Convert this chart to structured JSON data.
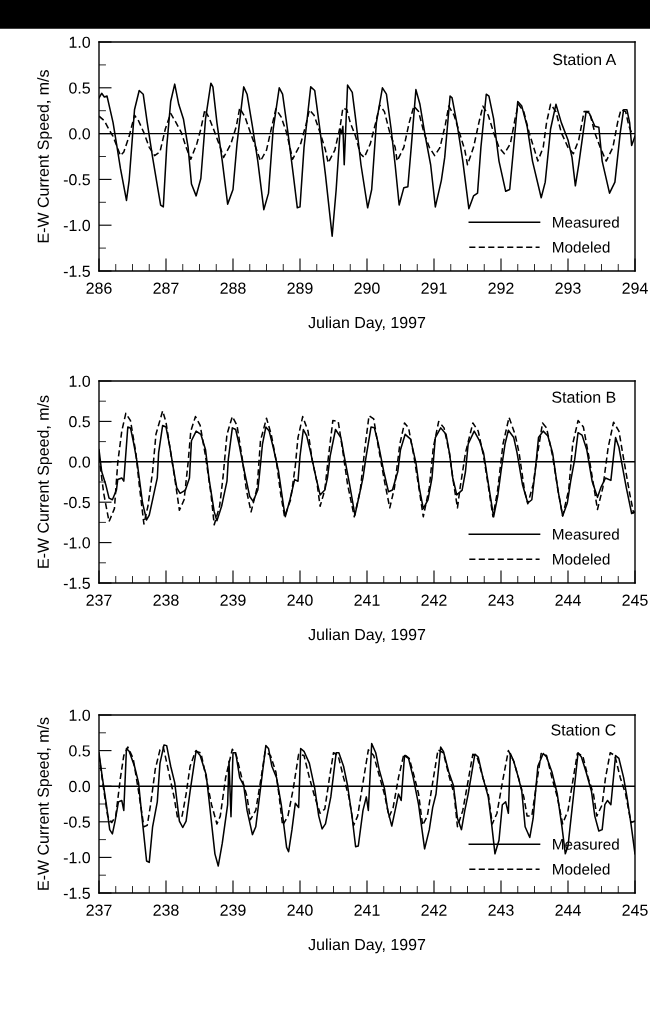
{
  "chart_data": [
    {
      "type": "line",
      "annotations": [
        "Station A"
      ],
      "xlabel": "Julian Day, 1997",
      "ylabel": "E-W Current Speed, m/s",
      "legend": "bottom right",
      "xlim": [
        286,
        294
      ],
      "ylim": [
        -1.5,
        1.0
      ],
      "xticks": [
        286,
        {
          "value": 286.25,
          "label": null
        },
        {
          "value": 286.5,
          "label": null
        },
        {
          "value": 286.75,
          "label": null
        },
        287,
        {
          "value": 287.25,
          "label": null
        },
        {
          "value": 287.5,
          "label": null
        },
        {
          "value": 287.75,
          "label": null
        },
        288,
        {
          "value": 288.25,
          "label": null
        },
        {
          "value": 288.5,
          "label": null
        },
        {
          "value": 288.75,
          "label": null
        },
        289,
        {
          "value": 289.25,
          "label": null
        },
        {
          "value": 289.5,
          "label": null
        },
        {
          "value": 289.75,
          "label": null
        },
        290,
        {
          "value": 290.25,
          "label": null
        },
        {
          "value": 290.5,
          "label": null
        },
        {
          "value": 290.75,
          "label": null
        },
        291,
        {
          "value": 291.25,
          "label": null
        },
        {
          "value": 291.5,
          "label": null
        },
        {
          "value": 291.75,
          "label": null
        },
        292,
        {
          "value": 292.25,
          "label": null
        },
        {
          "value": 292.5,
          "label": null
        },
        {
          "value": 292.75,
          "label": null
        },
        293,
        {
          "value": 293.25,
          "label": null
        },
        {
          "value": 293.5,
          "label": null
        },
        {
          "value": 293.75,
          "label": null
        },
        294
      ],
      "yticks": [
        -1.5,
        {
          "value": -1.25,
          "label": null
        },
        {
          "value": -1.0,
          "label": "-1.0"
        },
        {
          "value": -0.75,
          "label": null
        },
        -0.5,
        {
          "value": -0.25,
          "label": null
        },
        {
          "value": 0.0,
          "label": "0.0"
        },
        {
          "value": 0.25,
          "label": null
        },
        0.5,
        {
          "value": 0.75,
          "label": null
        },
        {
          "value": 1.0,
          "label": "1.0"
        }
      ],
      "ref_lines": [
        {
          "axis": "y",
          "value": 0,
          "color": "#000000"
        }
      ],
      "series": [
        {
          "name": "Measured",
          "color": "#000000",
          "line_style": "solid",
          "x": [
            286.0,
            286.04,
            286.08,
            286.12,
            286.16,
            286.21,
            286.27,
            286.32,
            286.41,
            286.45,
            286.53,
            286.6,
            286.66,
            286.72,
            286.8,
            286.88,
            286.92,
            286.96,
            287.01,
            287.07,
            287.13,
            287.19,
            287.26,
            287.33,
            287.38,
            287.45,
            287.52,
            287.59,
            287.67,
            287.7,
            287.76,
            287.84,
            287.92,
            288.0,
            288.06,
            288.16,
            288.21,
            288.29,
            288.37,
            288.46,
            288.53,
            288.6,
            288.69,
            288.74,
            288.82,
            288.9,
            288.96,
            289.0,
            289.06,
            289.16,
            289.22,
            289.3,
            289.38,
            289.48,
            289.54,
            289.6,
            289.62,
            289.64,
            289.66,
            289.68,
            289.71,
            289.78,
            289.83,
            289.91,
            290.01,
            290.07,
            290.14,
            290.23,
            290.29,
            290.36,
            290.42,
            290.48,
            290.55,
            290.61,
            290.66,
            290.73,
            290.79,
            290.87,
            290.95,
            291.02,
            291.11,
            291.16,
            291.24,
            291.27,
            291.35,
            291.43,
            291.52,
            291.59,
            291.65,
            291.7,
            291.78,
            291.82,
            291.89,
            291.97,
            292.07,
            292.13,
            292.18,
            292.25,
            292.31,
            292.39,
            292.47,
            292.6,
            292.66,
            292.74,
            292.82,
            292.9,
            293.0,
            293.06,
            293.11,
            293.16,
            293.27,
            293.32,
            293.4,
            293.46,
            293.51,
            293.62,
            293.7,
            293.78,
            293.83,
            293.88,
            293.92,
            293.95,
            294.0
          ],
          "values": [
            0.39,
            0.44,
            0.4,
            0.41,
            0.28,
            0.12,
            -0.15,
            -0.38,
            -0.73,
            -0.51,
            0.26,
            0.47,
            0.43,
            0.12,
            -0.26,
            -0.61,
            -0.78,
            -0.8,
            -0.15,
            0.35,
            0.54,
            0.32,
            0.16,
            -0.15,
            -0.55,
            -0.68,
            -0.49,
            0.16,
            0.55,
            0.51,
            0.12,
            -0.3,
            -0.77,
            -0.61,
            -0.11,
            0.51,
            0.43,
            0.08,
            -0.3,
            -0.83,
            -0.65,
            0.05,
            0.5,
            0.43,
            0.01,
            -0.45,
            -0.81,
            -0.8,
            -0.15,
            0.51,
            0.47,
            0.03,
            -0.45,
            -1.12,
            -0.61,
            0.05,
            0.0,
            0.08,
            -0.34,
            0.01,
            0.53,
            0.45,
            0.16,
            -0.34,
            -0.81,
            -0.61,
            0.12,
            0.5,
            0.43,
            0.05,
            -0.34,
            -0.78,
            -0.59,
            -0.58,
            -0.15,
            0.48,
            0.32,
            -0.03,
            -0.34,
            -0.8,
            -0.51,
            -0.26,
            0.41,
            0.39,
            0.08,
            -0.3,
            -0.82,
            -0.68,
            -0.65,
            -0.15,
            0.43,
            0.41,
            0.16,
            -0.3,
            -0.63,
            -0.61,
            -0.22,
            0.35,
            0.3,
            0.08,
            -0.3,
            -0.7,
            -0.53,
            0.05,
            0.32,
            0.12,
            -0.07,
            -0.26,
            -0.57,
            -0.34,
            0.24,
            0.22,
            0.08,
            0.07,
            -0.3,
            -0.65,
            -0.53,
            0.01,
            0.26,
            0.26,
            0.12,
            -0.13,
            -0.03
          ]
        },
        {
          "name": "Modeled",
          "color": "#000000",
          "line_style": "dashed",
          "x": [
            286.0,
            286.08,
            286.16,
            286.21,
            286.32,
            286.37,
            286.45,
            286.53,
            286.59,
            286.67,
            286.75,
            286.83,
            286.91,
            286.99,
            287.07,
            287.15,
            287.23,
            287.3,
            287.37,
            287.46,
            287.52,
            287.58,
            287.65,
            287.73,
            287.81,
            287.86,
            287.97,
            288.05,
            288.1,
            288.18,
            288.26,
            288.34,
            288.41,
            288.5,
            288.58,
            288.64,
            288.72,
            288.8,
            288.89,
            289.01,
            289.09,
            289.14,
            289.21,
            289.3,
            289.38,
            289.42,
            289.52,
            289.6,
            289.64,
            289.7,
            289.75,
            289.83,
            289.9,
            289.96,
            290.05,
            290.13,
            290.19,
            290.26,
            290.34,
            290.42,
            290.45,
            290.55,
            290.63,
            290.7,
            290.77,
            290.85,
            290.93,
            291.01,
            291.09,
            291.17,
            291.22,
            291.3,
            291.38,
            291.46,
            291.5,
            291.59,
            291.67,
            291.73,
            291.81,
            291.89,
            291.97,
            292.05,
            292.14,
            292.21,
            292.26,
            292.34,
            292.42,
            292.5,
            292.55,
            292.63,
            292.68,
            292.74,
            292.82,
            292.9,
            293.0,
            293.08,
            293.16,
            293.24,
            293.32,
            293.4,
            293.48,
            293.57,
            293.67,
            293.74,
            293.79,
            293.86,
            293.91,
            293.96
          ],
          "values": [
            0.19,
            0.14,
            0.03,
            -0.03,
            -0.24,
            -0.2,
            -0.03,
            0.2,
            0.14,
            0.01,
            -0.15,
            -0.24,
            -0.2,
            0.05,
            0.22,
            0.12,
            0.01,
            -0.15,
            -0.28,
            -0.11,
            0.05,
            0.26,
            0.16,
            0.01,
            -0.15,
            -0.26,
            -0.11,
            0.08,
            0.28,
            0.18,
            0.01,
            -0.15,
            -0.3,
            -0.18,
            0.08,
            0.27,
            0.18,
            0.01,
            -0.28,
            -0.11,
            0.1,
            0.26,
            0.2,
            0.01,
            -0.18,
            -0.32,
            -0.18,
            0.08,
            0.28,
            0.26,
            0.12,
            -0.03,
            -0.22,
            -0.26,
            -0.11,
            0.12,
            0.31,
            0.24,
            0.01,
            -0.15,
            -0.3,
            -0.15,
            0.12,
            0.3,
            0.24,
            0.01,
            -0.15,
            -0.24,
            -0.15,
            0.1,
            0.3,
            0.2,
            0.01,
            -0.18,
            -0.34,
            -0.15,
            0.12,
            0.3,
            0.2,
            0.01,
            -0.15,
            -0.22,
            -0.11,
            0.16,
            0.32,
            0.24,
            0.01,
            -0.18,
            -0.3,
            -0.15,
            0.12,
            0.32,
            0.24,
            0.01,
            -0.15,
            -0.22,
            -0.07,
            0.24,
            0.24,
            0.01,
            -0.15,
            -0.3,
            -0.15,
            0.12,
            0.26,
            0.24,
            0.08,
            -0.01
          ]
        }
      ]
    },
    {
      "type": "line",
      "annotations": [
        "Station B"
      ],
      "xlabel": "Julian Day, 1997",
      "ylabel": "E-W Current Speed, m/s",
      "legend": "bottom right",
      "xlim": [
        237,
        245
      ],
      "ylim": [
        -1.5,
        1.0
      ],
      "xticks": [
        237,
        {
          "value": 237.25,
          "label": null
        },
        {
          "value": 237.5,
          "label": null
        },
        {
          "value": 237.75,
          "label": null
        },
        238,
        {
          "value": 238.25,
          "label": null
        },
        {
          "value": 238.5,
          "label": null
        },
        {
          "value": 238.75,
          "label": null
        },
        239,
        {
          "value": 239.25,
          "label": null
        },
        {
          "value": 239.5,
          "label": null
        },
        {
          "value": 239.75,
          "label": null
        },
        240,
        {
          "value": 240.25,
          "label": null
        },
        {
          "value": 240.5,
          "label": null
        },
        {
          "value": 240.75,
          "label": null
        },
        241,
        {
          "value": 241.25,
          "label": null
        },
        {
          "value": 241.5,
          "label": null
        },
        {
          "value": 241.75,
          "label": null
        },
        242,
        {
          "value": 242.25,
          "label": null
        },
        {
          "value": 242.5,
          "label": null
        },
        {
          "value": 242.75,
          "label": null
        },
        243,
        {
          "value": 243.25,
          "label": null
        },
        {
          "value": 243.5,
          "label": null
        },
        {
          "value": 243.75,
          "label": null
        },
        244,
        {
          "value": 244.25,
          "label": null
        },
        {
          "value": 244.5,
          "label": null
        },
        {
          "value": 244.75,
          "label": null
        },
        245
      ],
      "yticks": [
        -1.5,
        {
          "value": -1.25,
          "label": null
        },
        {
          "value": -1.0,
          "label": "-1.0"
        },
        {
          "value": -0.75,
          "label": null
        },
        -0.5,
        {
          "value": -0.25,
          "label": null
        },
        {
          "value": 0.0,
          "label": "0.0"
        },
        {
          "value": 0.25,
          "label": null
        },
        0.5,
        {
          "value": 0.75,
          "label": null
        },
        {
          "value": 1.0,
          "label": "1.0"
        }
      ],
      "ref_lines": [
        {
          "axis": "y",
          "value": 0,
          "color": "#000000"
        }
      ],
      "series": [
        {
          "name": "Measured",
          "color": "#000000",
          "line_style": "solid",
          "x": [
            237.0,
            237.04,
            237.1,
            237.15,
            237.2,
            237.26,
            237.28,
            237.34,
            237.37,
            237.43,
            237.47,
            237.52,
            237.57,
            237.65,
            237.71,
            237.75,
            237.81,
            237.87,
            237.89,
            237.95,
            238.0,
            238.05,
            238.11,
            238.16,
            238.21,
            238.29,
            238.35,
            238.38,
            238.45,
            238.52,
            238.59,
            238.64,
            238.72,
            238.76,
            238.83,
            238.91,
            238.93,
            238.99,
            239.04,
            239.09,
            239.17,
            239.25,
            239.3,
            239.37,
            239.39,
            239.44,
            239.49,
            239.54,
            239.6,
            239.68,
            239.76,
            239.78,
            239.85,
            239.92,
            239.97,
            240.0,
            240.05,
            240.1,
            240.16,
            240.24,
            240.3,
            240.37,
            240.41,
            240.45,
            240.53,
            240.61,
            240.66,
            240.74,
            240.82,
            240.87,
            240.94,
            240.98,
            241.06,
            241.11,
            241.17,
            241.25,
            241.32,
            241.38,
            241.46,
            241.5,
            241.57,
            241.65,
            241.73,
            241.78,
            241.84,
            241.91,
            241.97,
            242.02,
            242.1,
            242.18,
            242.23,
            242.28,
            242.34,
            242.42,
            242.47,
            242.51,
            242.6,
            242.68,
            242.74,
            242.82,
            242.89,
            242.95,
            243.0,
            243.06,
            243.11,
            243.19,
            243.24,
            243.32,
            243.4,
            243.46,
            243.51,
            243.56,
            243.63,
            243.7,
            243.77,
            243.85,
            243.92,
            243.99,
            244.04,
            244.1,
            244.15,
            244.21,
            244.28,
            244.36,
            244.44,
            244.49,
            244.56,
            244.64,
            244.71,
            244.76,
            244.81,
            244.87,
            244.95,
            245.0
          ],
          "values": [
            0.15,
            -0.12,
            -0.28,
            -0.45,
            -0.47,
            -0.35,
            -0.22,
            -0.2,
            -0.24,
            0.43,
            0.42,
            0.22,
            -0.01,
            -0.51,
            -0.72,
            -0.66,
            -0.43,
            -0.2,
            0.11,
            0.45,
            0.43,
            0.22,
            -0.08,
            -0.32,
            -0.39,
            -0.35,
            -0.2,
            0.26,
            0.38,
            0.34,
            0.15,
            -0.2,
            -0.62,
            -0.73,
            -0.55,
            -0.24,
            0.03,
            0.42,
            0.4,
            0.22,
            -0.12,
            -0.43,
            -0.49,
            -0.35,
            -0.2,
            0.22,
            0.43,
            0.38,
            0.18,
            -0.12,
            -0.58,
            -0.68,
            -0.47,
            -0.22,
            -0.24,
            0.07,
            0.4,
            0.32,
            0.11,
            -0.2,
            -0.41,
            -0.35,
            -0.2,
            0.07,
            0.4,
            0.3,
            0.07,
            -0.28,
            -0.66,
            -0.47,
            -0.2,
            0.03,
            0.43,
            0.42,
            0.22,
            -0.12,
            -0.37,
            -0.35,
            -0.12,
            0.15,
            0.34,
            0.28,
            -0.01,
            -0.32,
            -0.58,
            -0.47,
            -0.2,
            0.3,
            0.42,
            0.34,
            0.11,
            -0.2,
            -0.41,
            -0.35,
            -0.12,
            0.22,
            0.38,
            0.26,
            0.11,
            -0.32,
            -0.68,
            -0.43,
            -0.12,
            0.22,
            0.39,
            0.3,
            0.11,
            -0.28,
            -0.51,
            -0.47,
            -0.12,
            0.3,
            0.38,
            0.32,
            0.11,
            -0.35,
            -0.67,
            -0.51,
            -0.24,
            0.03,
            0.36,
            0.33,
            0.15,
            -0.24,
            -0.44,
            -0.32,
            -0.2,
            -0.23,
            0.3,
            0.18,
            -0.05,
            -0.32,
            -0.64,
            -0.62
          ]
        },
        {
          "name": "Modeled",
          "color": "#000000",
          "line_style": "dashed",
          "x": [
            237.0,
            237.07,
            237.15,
            237.23,
            237.28,
            237.34,
            237.4,
            237.47,
            237.55,
            237.6,
            237.67,
            237.73,
            237.8,
            237.85,
            237.95,
            238.0,
            238.05,
            238.13,
            238.2,
            238.27,
            238.33,
            238.37,
            238.44,
            238.51,
            238.59,
            238.67,
            238.72,
            238.8,
            238.85,
            238.91,
            238.99,
            239.06,
            239.14,
            239.2,
            239.27,
            239.36,
            239.41,
            239.5,
            239.57,
            239.65,
            239.71,
            239.77,
            239.86,
            239.93,
            239.97,
            240.04,
            240.12,
            240.18,
            240.25,
            240.3,
            240.37,
            240.42,
            240.49,
            240.57,
            240.63,
            240.71,
            240.81,
            240.9,
            240.97,
            241.03,
            241.1,
            241.17,
            241.27,
            241.34,
            241.41,
            241.49,
            241.56,
            241.62,
            241.7,
            241.78,
            241.84,
            241.93,
            241.99,
            242.07,
            242.15,
            242.23,
            242.28,
            242.35,
            242.39,
            242.47,
            242.58,
            242.66,
            242.74,
            242.82,
            242.88,
            242.95,
            243.03,
            243.12,
            243.21,
            243.27,
            243.35,
            243.4,
            243.48,
            243.54,
            243.62,
            243.68,
            243.77,
            243.85,
            243.92,
            244.01,
            244.07,
            244.15,
            244.23,
            244.31,
            244.38,
            244.44,
            244.52,
            244.6,
            244.68,
            244.76,
            244.84,
            244.92,
            244.98
          ],
          "values": [
            0.07,
            -0.39,
            -0.74,
            -0.58,
            -0.01,
            0.38,
            0.6,
            0.51,
            0.11,
            -0.28,
            -0.77,
            -0.55,
            -0.12,
            0.34,
            0.63,
            0.49,
            0.22,
            -0.2,
            -0.6,
            -0.47,
            -0.01,
            0.38,
            0.56,
            0.45,
            0.07,
            -0.39,
            -0.78,
            -0.55,
            -0.2,
            0.34,
            0.56,
            0.45,
            0.03,
            -0.35,
            -0.62,
            -0.32,
            0.26,
            0.54,
            0.34,
            -0.01,
            -0.39,
            -0.68,
            -0.47,
            -0.05,
            0.3,
            0.56,
            0.38,
            0.03,
            -0.24,
            -0.55,
            -0.35,
            0.03,
            0.51,
            0.5,
            0.18,
            -0.28,
            -0.68,
            -0.35,
            0.18,
            0.57,
            0.53,
            0.18,
            -0.28,
            -0.57,
            -0.32,
            0.22,
            0.48,
            0.42,
            0.07,
            -0.35,
            -0.68,
            -0.32,
            0.18,
            0.5,
            0.42,
            0.11,
            -0.2,
            -0.57,
            -0.32,
            0.11,
            0.48,
            0.38,
            0.07,
            -0.35,
            -0.68,
            -0.35,
            0.22,
            0.55,
            0.34,
            0.11,
            -0.35,
            -0.52,
            -0.28,
            0.07,
            0.48,
            0.42,
            0.07,
            -0.35,
            -0.67,
            -0.35,
            0.22,
            0.51,
            0.43,
            0.07,
            -0.28,
            -0.59,
            -0.32,
            0.18,
            0.49,
            0.38,
            -0.01,
            -0.39,
            -0.64
          ]
        }
      ]
    },
    {
      "type": "line",
      "annotations": [
        "Station C"
      ],
      "xlabel": "Julian Day, 1997",
      "ylabel": "E-W Current Speed, m/s",
      "legend": "bottom right",
      "xlim": [
        237,
        245
      ],
      "ylim": [
        -1.5,
        1.0
      ],
      "xticks": [
        237,
        {
          "value": 237.25,
          "label": null
        },
        {
          "value": 237.5,
          "label": null
        },
        {
          "value": 237.75,
          "label": null
        },
        238,
        {
          "value": 238.25,
          "label": null
        },
        {
          "value": 238.5,
          "label": null
        },
        {
          "value": 238.75,
          "label": null
        },
        239,
        {
          "value": 239.25,
          "label": null
        },
        {
          "value": 239.5,
          "label": null
        },
        {
          "value": 239.75,
          "label": null
        },
        240,
        {
          "value": 240.25,
          "label": null
        },
        {
          "value": 240.5,
          "label": null
        },
        {
          "value": 240.75,
          "label": null
        },
        241,
        {
          "value": 241.25,
          "label": null
        },
        {
          "value": 241.5,
          "label": null
        },
        {
          "value": 241.75,
          "label": null
        },
        242,
        {
          "value": 242.25,
          "label": null
        },
        {
          "value": 242.5,
          "label": null
        },
        {
          "value": 242.75,
          "label": null
        },
        243,
        {
          "value": 243.25,
          "label": null
        },
        {
          "value": 243.5,
          "label": null
        },
        {
          "value": 243.75,
          "label": null
        },
        244,
        {
          "value": 244.25,
          "label": null
        },
        {
          "value": 244.5,
          "label": null
        },
        {
          "value": 244.75,
          "label": null
        },
        245
      ],
      "yticks": [
        -1.5,
        {
          "value": -1.25,
          "label": null
        },
        {
          "value": -1.0,
          "label": "-1.0"
        },
        {
          "value": -0.75,
          "label": null
        },
        -0.5,
        {
          "value": -0.25,
          "label": null
        },
        {
          "value": 0.0,
          "label": "0.0"
        },
        {
          "value": 0.25,
          "label": null
        },
        0.5,
        {
          "value": 0.75,
          "label": null
        },
        {
          "value": 1.0,
          "label": "1.0"
        }
      ],
      "ref_lines": [
        {
          "axis": "y",
          "value": 0,
          "color": "#000000"
        }
      ],
      "series": [
        {
          "name": "Measured",
          "color": "#000000",
          "line_style": "solid",
          "x": [
            237.0,
            237.05,
            237.11,
            237.16,
            237.2,
            237.24,
            237.29,
            237.34,
            237.37,
            237.41,
            237.45,
            237.53,
            237.59,
            237.64,
            237.71,
            237.75,
            237.8,
            237.87,
            237.91,
            237.97,
            238.01,
            238.07,
            238.13,
            238.2,
            238.25,
            238.3,
            238.36,
            238.45,
            238.51,
            238.6,
            238.65,
            238.73,
            238.78,
            238.84,
            238.92,
            238.94,
            238.97,
            239.0,
            239.04,
            239.1,
            239.16,
            239.21,
            239.29,
            239.34,
            239.4,
            239.49,
            239.53,
            239.58,
            239.65,
            239.72,
            239.8,
            239.83,
            239.88,
            239.93,
            239.98,
            240.01,
            240.06,
            240.14,
            240.22,
            240.28,
            240.33,
            240.38,
            240.46,
            240.54,
            240.58,
            240.65,
            240.71,
            240.78,
            240.83,
            240.87,
            240.94,
            240.99,
            241.02,
            241.07,
            241.13,
            241.18,
            241.26,
            241.31,
            241.37,
            241.42,
            241.47,
            241.51,
            241.56,
            241.62,
            241.69,
            241.77,
            241.86,
            241.93,
            241.98,
            242.03,
            242.1,
            242.14,
            242.22,
            242.29,
            242.35,
            242.41,
            242.46,
            242.51,
            242.61,
            242.66,
            242.73,
            242.81,
            242.86,
            242.91,
            242.97,
            243.02,
            243.07,
            243.11,
            243.14,
            243.19,
            243.26,
            243.31,
            243.36,
            243.43,
            243.48,
            243.55,
            243.63,
            243.68,
            243.76,
            243.84,
            243.91,
            243.96,
            244.0,
            244.08,
            244.15,
            244.2,
            244.27,
            244.35,
            244.4,
            244.46,
            244.51,
            244.55,
            244.59,
            244.64,
            244.71,
            244.76,
            244.83,
            244.88,
            244.94,
            245.0
          ],
          "values": [
            0.47,
            0.12,
            -0.26,
            -0.61,
            -0.67,
            -0.49,
            -0.22,
            -0.2,
            -0.34,
            0.53,
            0.49,
            0.28,
            0.05,
            -0.42,
            -1.05,
            -1.07,
            -0.57,
            -0.22,
            0.32,
            0.58,
            0.57,
            0.28,
            0.05,
            -0.49,
            -0.58,
            -0.49,
            -0.07,
            0.5,
            0.43,
            0.16,
            -0.26,
            -0.95,
            -1.12,
            -0.8,
            -0.26,
            0.35,
            -0.43,
            0.47,
            0.47,
            0.12,
            0.01,
            -0.34,
            -0.68,
            -0.57,
            -0.11,
            0.57,
            0.53,
            0.28,
            0.12,
            -0.26,
            -0.86,
            -0.92,
            -0.61,
            -0.24,
            -0.3,
            0.53,
            0.49,
            0.32,
            -0.03,
            -0.42,
            -0.6,
            -0.53,
            -0.15,
            0.47,
            0.47,
            0.28,
            0.01,
            -0.45,
            -0.85,
            -0.84,
            -0.34,
            -0.15,
            -0.34,
            0.6,
            0.47,
            0.24,
            -0.03,
            -0.34,
            -0.56,
            -0.34,
            -0.11,
            -0.2,
            0.43,
            0.39,
            0.12,
            -0.26,
            -0.88,
            -0.61,
            -0.3,
            -0.11,
            0.55,
            0.49,
            0.2,
            0.01,
            -0.45,
            -0.61,
            -0.34,
            -0.11,
            0.45,
            0.41,
            0.12,
            -0.15,
            -0.53,
            -0.95,
            -0.76,
            -0.26,
            -0.22,
            -0.38,
            0.46,
            0.35,
            0.12,
            -0.07,
            -0.57,
            -0.72,
            -0.45,
            0.28,
            0.46,
            0.41,
            0.2,
            -0.11,
            -0.57,
            -0.95,
            -0.84,
            -0.15,
            0.47,
            0.41,
            0.2,
            -0.07,
            -0.42,
            -0.63,
            -0.61,
            -0.26,
            -0.2,
            -0.26,
            0.43,
            0.39,
            0.12,
            -0.15,
            -0.53,
            -0.95
          ]
        },
        {
          "name": "Modeled",
          "color": "#000000",
          "line_style": "dashed",
          "x": [
            237.0,
            237.08,
            237.13,
            237.19,
            237.25,
            237.32,
            237.37,
            237.43,
            237.51,
            237.59,
            237.67,
            237.72,
            237.77,
            237.84,
            237.91,
            237.96,
            238.04,
            238.12,
            238.17,
            238.24,
            238.3,
            238.36,
            238.44,
            238.52,
            238.6,
            238.68,
            238.76,
            238.81,
            238.89,
            238.99,
            239.05,
            239.13,
            239.21,
            239.26,
            239.34,
            239.42,
            239.48,
            239.56,
            239.64,
            239.69,
            239.74,
            239.82,
            239.9,
            239.98,
            240.06,
            240.14,
            240.22,
            240.3,
            240.37,
            240.44,
            240.5,
            240.57,
            240.65,
            240.73,
            240.8,
            240.86,
            240.94,
            241.02,
            241.1,
            241.18,
            241.26,
            241.33,
            241.39,
            241.47,
            241.55,
            241.63,
            241.71,
            241.77,
            241.83,
            241.9,
            241.98,
            242.06,
            242.14,
            242.22,
            242.3,
            242.35,
            242.43,
            242.51,
            242.58,
            242.65,
            242.73,
            242.81,
            242.87,
            242.94,
            243.02,
            243.11,
            243.19,
            243.26,
            243.34,
            243.39,
            243.46,
            243.52,
            243.6,
            243.68,
            243.76,
            243.84,
            243.92,
            244.0,
            244.08,
            244.14,
            244.22,
            244.3,
            244.38,
            244.43,
            244.51,
            244.56,
            244.63,
            244.7,
            244.78,
            244.86,
            244.94,
            245.0
          ],
          "values": [
            0.43,
            -0.11,
            -0.42,
            -0.51,
            -0.42,
            0.12,
            0.43,
            0.55,
            0.39,
            -0.07,
            -0.57,
            -0.55,
            -0.26,
            0.24,
            0.51,
            0.55,
            0.2,
            -0.15,
            -0.43,
            -0.42,
            -0.11,
            0.28,
            0.49,
            0.47,
            0.12,
            -0.26,
            -0.53,
            -0.42,
            0.12,
            0.52,
            0.43,
            0.12,
            -0.15,
            -0.47,
            -0.34,
            0.12,
            0.49,
            0.43,
            0.2,
            -0.15,
            -0.55,
            -0.42,
            -0.03,
            0.45,
            0.43,
            0.12,
            -0.15,
            -0.38,
            -0.32,
            0.12,
            0.47,
            0.43,
            0.12,
            -0.15,
            -0.55,
            -0.42,
            0.05,
            0.51,
            0.43,
            0.16,
            -0.11,
            -0.43,
            -0.3,
            0.12,
            0.45,
            0.39,
            0.12,
            -0.11,
            -0.55,
            -0.42,
            0.05,
            0.51,
            0.47,
            0.16,
            -0.11,
            -0.57,
            -0.34,
            0.08,
            0.45,
            0.39,
            0.12,
            -0.11,
            -0.53,
            -0.38,
            0.05,
            0.5,
            0.35,
            0.12,
            -0.15,
            -0.42,
            -0.42,
            -0.03,
            0.46,
            0.43,
            0.12,
            -0.15,
            -0.53,
            -0.34,
            0.12,
            0.46,
            0.43,
            0.12,
            -0.11,
            -0.42,
            -0.26,
            0.12,
            0.47,
            0.43,
            0.12,
            -0.11,
            -0.51,
            -0.49
          ]
        }
      ]
    }
  ]
}
